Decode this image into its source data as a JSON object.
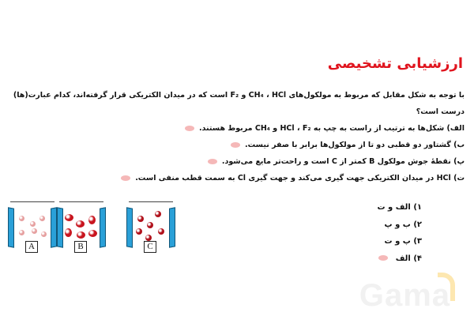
{
  "title": "ارزشیابی تشخیصی",
  "question": {
    "line1": "با توجه به شکل مقابل که مربوط به مولکول‌های CH₄ ، HCl و F₂ است که در میدان الکتریکی قرار گرفته‌اند، کدام عبارت(ها)",
    "line2": "درست است؟"
  },
  "statements": [
    "الف) شکل‌ها به ترتیب از راست به چپ به HCl ، F₂ و CH₄ مربوط هستند.",
    "ب) گشتاور دو قطبی دو تا از مولکول‌ها برابر با صفر نیست.",
    "پ) نقطهٔ جوش مولکول B کمتر از C است و راحت‌تر مایع می‌شود.",
    "ت) HCl در میدان الکتریکی جهت گیری می‌کند و جهت گیری Cl به سمت قطب منفی است."
  ],
  "figures": [
    {
      "label": "A",
      "molecule_color": "#e6a0a0"
    },
    {
      "label": "B",
      "molecule_color": "#c8141e"
    },
    {
      "label": "C",
      "molecule_color": "#b0101a"
    }
  ],
  "choices": [
    {
      "num": "۱)",
      "text": "الف و ت"
    },
    {
      "num": "۲)",
      "text": "ب و پ"
    },
    {
      "num": "۳)",
      "text": "پ و ت"
    },
    {
      "num": "۴)",
      "text": "الف"
    }
  ],
  "watermark": "Gama",
  "colors": {
    "title": "#e0141e",
    "plate": "#2aa0d8"
  }
}
